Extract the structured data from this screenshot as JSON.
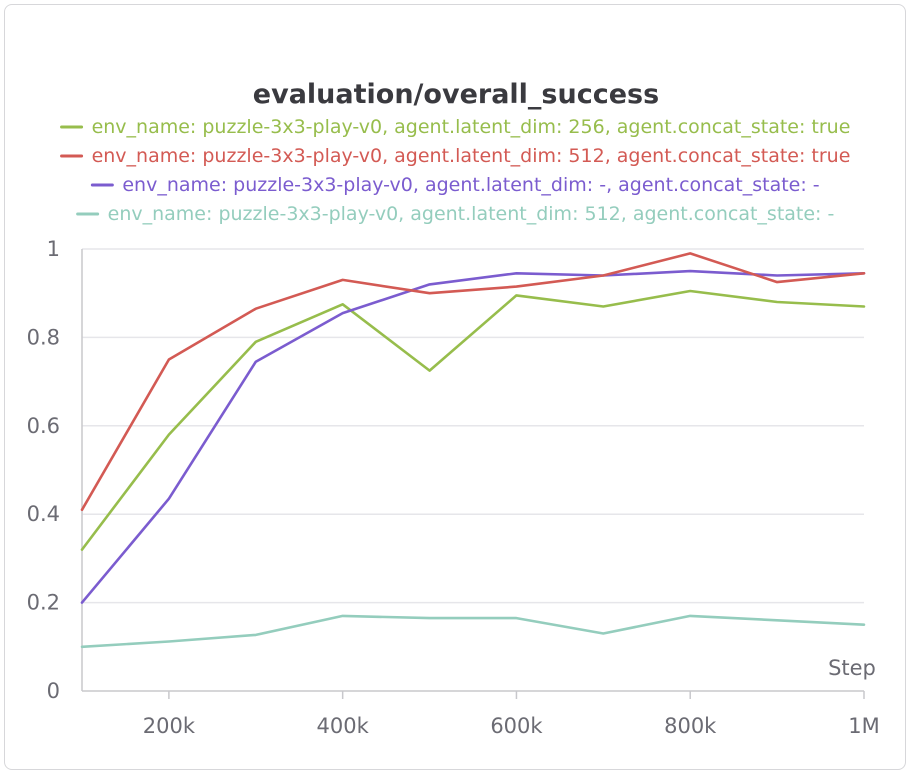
{
  "chart_data": {
    "type": "line",
    "title": "evaluation/overall_success",
    "xlabel": "Step",
    "ylabel": "",
    "xlim": [
      100000,
      1000000
    ],
    "ylim": [
      0,
      1
    ],
    "grid": true,
    "legend_position": "top",
    "x": [
      100000,
      200000,
      300000,
      400000,
      500000,
      600000,
      700000,
      800000,
      900000,
      1000000
    ],
    "x_ticks": [
      {
        "value": 200000,
        "label": "200k"
      },
      {
        "value": 400000,
        "label": "400k"
      },
      {
        "value": 600000,
        "label": "600k"
      },
      {
        "value": 800000,
        "label": "800k"
      },
      {
        "value": 1000000,
        "label": "1M"
      }
    ],
    "y_ticks": [
      {
        "value": 0,
        "label": "0"
      },
      {
        "value": 0.2,
        "label": "0.2"
      },
      {
        "value": 0.4,
        "label": "0.4"
      },
      {
        "value": 0.6,
        "label": "0.6"
      },
      {
        "value": 0.8,
        "label": "0.8"
      },
      {
        "value": 1,
        "label": "1"
      }
    ],
    "series": [
      {
        "name": "env_name: puzzle-3x3-play-v0, agent.latent_dim: 256, agent.concat_state: true",
        "color": "#97bd4c",
        "values": [
          0.32,
          0.58,
          0.79,
          0.875,
          0.725,
          0.895,
          0.87,
          0.905,
          0.88,
          0.87
        ]
      },
      {
        "name": "env_name: puzzle-3x3-play-v0, agent.latent_dim: 512, agent.concat_state: true",
        "color": "#d35a54",
        "values": [
          0.41,
          0.75,
          0.865,
          0.93,
          0.9,
          0.915,
          0.94,
          0.99,
          0.925,
          0.945
        ]
      },
      {
        "name": "env_name: puzzle-3x3-play-v0, agent.latent_dim: -, agent.concat_state: -",
        "color": "#7b5ccf",
        "values": [
          0.2,
          0.435,
          0.745,
          0.855,
          0.92,
          0.945,
          0.94,
          0.95,
          0.94,
          0.945
        ]
      },
      {
        "name": "env_name: puzzle-3x3-play-v0, agent.latent_dim: 512, agent.concat_state: -",
        "color": "#94cdbd",
        "values": [
          0.1,
          0.112,
          0.127,
          0.17,
          0.165,
          0.165,
          0.13,
          0.17,
          0.16,
          0.15
        ]
      }
    ]
  }
}
